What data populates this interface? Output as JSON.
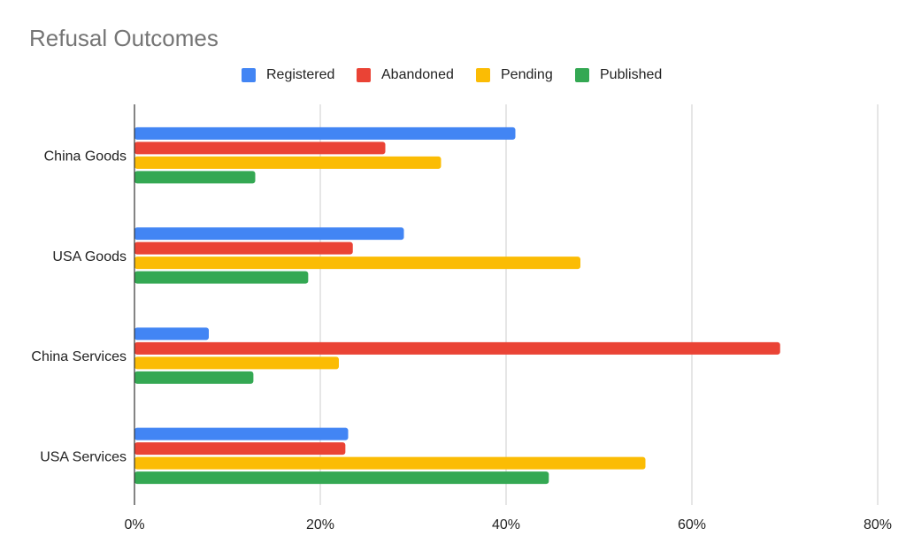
{
  "chart_data": {
    "type": "bar",
    "orientation": "horizontal",
    "title": "Refusal Outcomes",
    "categories": [
      "China Goods",
      "USA Goods",
      "China Services",
      "USA Services"
    ],
    "series": [
      {
        "name": "Registered",
        "color": "#4285f4",
        "values": [
          41,
          29,
          8,
          23
        ]
      },
      {
        "name": "Abandoned",
        "color": "#ea4335",
        "values": [
          27,
          23.5,
          69.5,
          22.7
        ]
      },
      {
        "name": "Pending",
        "color": "#fbbc04",
        "values": [
          33,
          48,
          22,
          55
        ]
      },
      {
        "name": "Published",
        "color": "#34a853",
        "values": [
          13,
          18.7,
          12.8,
          44.6
        ]
      }
    ],
    "xlim": [
      0,
      80
    ],
    "x_ticks": [
      "0%",
      "20%",
      "40%",
      "60%",
      "80%"
    ],
    "grid": true,
    "legend_position": "top"
  }
}
